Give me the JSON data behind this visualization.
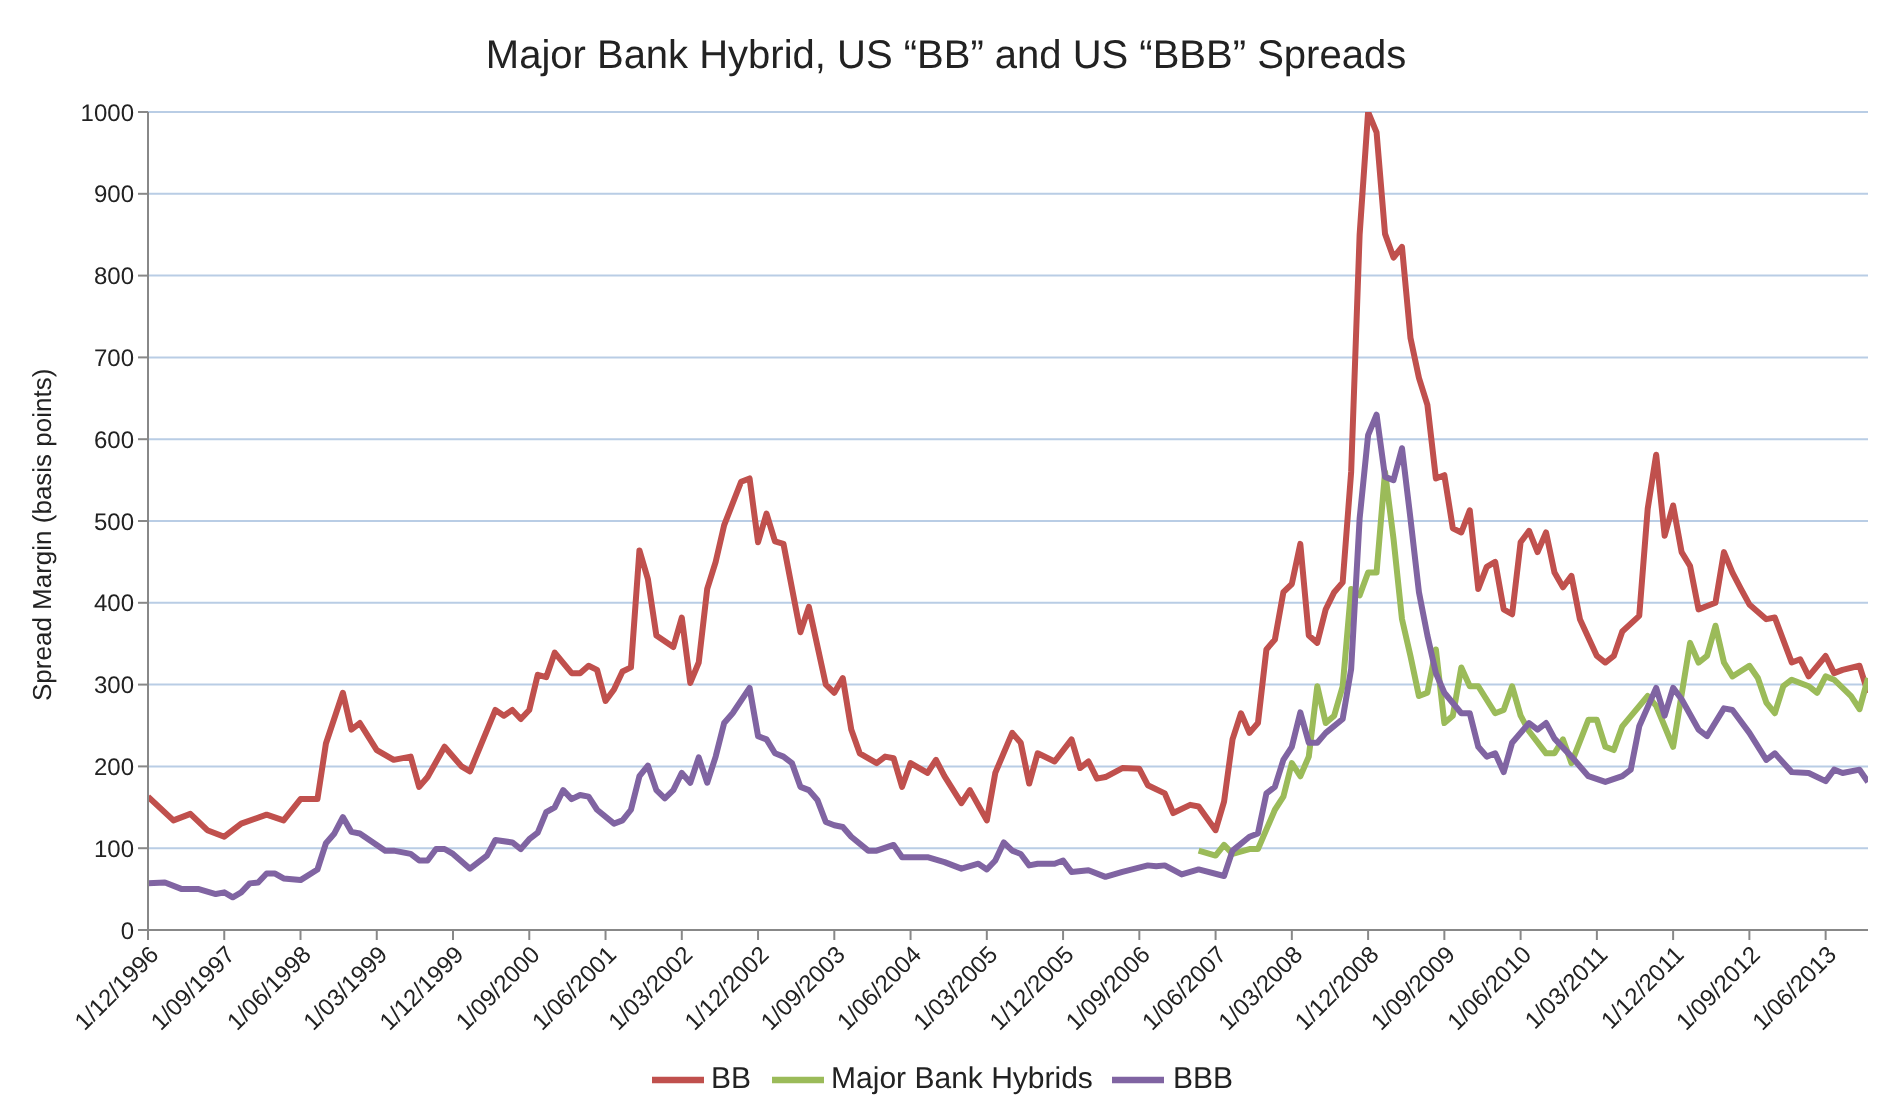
{
  "chart_data": {
    "type": "line",
    "title": "Major Bank Hybrid, US “BB” and US “BBB” Spreads",
    "ylabel": "Spread Margin (basis points)",
    "xlim": [
      "1996-12",
      "2013-11"
    ],
    "xticks": [
      {
        "value": "1996-12",
        "label": "1/12/1996"
      },
      {
        "value": "1997-09",
        "label": "1/09/1997"
      },
      {
        "value": "1998-06",
        "label": "1/06/1998"
      },
      {
        "value": "1999-03",
        "label": "1/03/1999"
      },
      {
        "value": "1999-12",
        "label": "1/12/1999"
      },
      {
        "value": "2000-09",
        "label": "1/09/2000"
      },
      {
        "value": "2001-06",
        "label": "1/06/2001"
      },
      {
        "value": "2002-03",
        "label": "1/03/2002"
      },
      {
        "value": "2002-12",
        "label": "1/12/2002"
      },
      {
        "value": "2003-09",
        "label": "1/09/2003"
      },
      {
        "value": "2004-06",
        "label": "1/06/2004"
      },
      {
        "value": "2005-03",
        "label": "1/03/2005"
      },
      {
        "value": "2005-12",
        "label": "1/12/2005"
      },
      {
        "value": "2006-09",
        "label": "1/09/2006"
      },
      {
        "value": "2007-06",
        "label": "1/06/2007"
      },
      {
        "value": "2008-03",
        "label": "1/03/2008"
      },
      {
        "value": "2008-12",
        "label": "1/12/2008"
      },
      {
        "value": "2009-09",
        "label": "1/09/2009"
      },
      {
        "value": "2010-06",
        "label": "1/06/2010"
      },
      {
        "value": "2011-03",
        "label": "1/03/2011"
      },
      {
        "value": "2011-12",
        "label": "1/12/2011"
      },
      {
        "value": "2012-09",
        "label": "1/09/2012"
      },
      {
        "value": "2013-06",
        "label": "1/06/2013"
      }
    ],
    "ylim": [
      0,
      1000
    ],
    "yticks": [
      0,
      100,
      200,
      300,
      400,
      500,
      600,
      700,
      800,
      900,
      1000
    ],
    "grid": "y",
    "legend": "bottom",
    "marker": "none",
    "line_style": "solid",
    "series": [
      {
        "name": "BB",
        "color": "#c0504d",
        "x": [
          "1996-12",
          "1997-03",
          "1997-05",
          "1997-07",
          "1997-09",
          "1997-11",
          "1998-02",
          "1998-04",
          "1998-06",
          "1998-08",
          "1998-09",
          "1998-11",
          "1998-12",
          "1999-01",
          "1999-03",
          "1999-05",
          "1999-07",
          "1999-08",
          "1999-09",
          "1999-11",
          "2000-01",
          "2000-02",
          "2000-05",
          "2000-06",
          "2000-07",
          "2000-08",
          "2000-09",
          "2000-10",
          "2000-11",
          "2000-12",
          "2001-02",
          "2001-03",
          "2001-04",
          "2001-05",
          "2001-06",
          "2001-07",
          "2001-08",
          "2001-09",
          "2001-10",
          "2001-11",
          "2001-12",
          "2002-02",
          "2002-03",
          "2002-04",
          "2002-05",
          "2002-06",
          "2002-07",
          "2002-08",
          "2002-10",
          "2002-11",
          "2002-12",
          "2003-01",
          "2003-02",
          "2003-03",
          "2003-05",
          "2003-06",
          "2003-08",
          "2003-09",
          "2003-10",
          "2003-11",
          "2003-12",
          "2004-02",
          "2004-03",
          "2004-04",
          "2004-05",
          "2004-06",
          "2004-08",
          "2004-09",
          "2004-10",
          "2004-12",
          "2005-01",
          "2005-03",
          "2005-04",
          "2005-06",
          "2005-07",
          "2005-08",
          "2005-09",
          "2005-11",
          "2006-01",
          "2006-02",
          "2006-03",
          "2006-04",
          "2006-05",
          "2006-07",
          "2006-09",
          "2006-10",
          "2006-12",
          "2007-01",
          "2007-03",
          "2007-04",
          "2007-06",
          "2007-07",
          "2007-08",
          "2007-09",
          "2007-10",
          "2007-11",
          "2007-12",
          "2008-01",
          "2008-02",
          "2008-03",
          "2008-04",
          "2008-05",
          "2008-06",
          "2008-07",
          "2008-08",
          "2008-09",
          "2008-10",
          "2008-11",
          "2008-12",
          "2009-01",
          "2009-02",
          "2009-03",
          "2009-04",
          "2009-05",
          "2009-06",
          "2009-07",
          "2009-08",
          "2009-09",
          "2009-10",
          "2009-11",
          "2009-12",
          "2010-01",
          "2010-02",
          "2010-03",
          "2010-04",
          "2010-05",
          "2010-06",
          "2010-07",
          "2010-08",
          "2010-09",
          "2010-10",
          "2010-11",
          "2010-12",
          "2011-01",
          "2011-03",
          "2011-04",
          "2011-05",
          "2011-06",
          "2011-08",
          "2011-09",
          "2011-10",
          "2011-11",
          "2011-12",
          "2012-01",
          "2012-02",
          "2012-03",
          "2012-04",
          "2012-05",
          "2012-06",
          "2012-07",
          "2012-08",
          "2012-09",
          "2012-11",
          "2012-12",
          "2013-02",
          "2013-03",
          "2013-04",
          "2013-06",
          "2013-07",
          "2013-08",
          "2013-10",
          "2013-11"
        ],
        "values": [
          163,
          134,
          142,
          122,
          114,
          130,
          141,
          134,
          160,
          160,
          228,
          290,
          245,
          253,
          220,
          208,
          212,
          175,
          187,
          224,
          200,
          194,
          269,
          262,
          269,
          258,
          269,
          312,
          309,
          339,
          314,
          314,
          323,
          318,
          280,
          294,
          316,
          321,
          464,
          429,
          360,
          346,
          382,
          302,
          327,
          417,
          450,
          495,
          548,
          552,
          474,
          509,
          475,
          472,
          364,
          395,
          300,
          290,
          308,
          245,
          216,
          204,
          212,
          210,
          175,
          204,
          192,
          208,
          188,
          155,
          171,
          134,
          192,
          241,
          229,
          179,
          216,
          206,
          233,
          198,
          206,
          185,
          187,
          198,
          197,
          177,
          167,
          143,
          153,
          151,
          122,
          157,
          233,
          265,
          241,
          253,
          343,
          355,
          413,
          423,
          472,
          360,
          351,
          392,
          413,
          425,
          560,
          850,
          1000,
          975,
          851,
          822,
          835,
          724,
          675,
          642,
          552,
          556,
          491,
          486,
          513,
          417,
          444,
          450,
          392,
          386,
          474,
          488,
          462,
          486,
          437,
          419,
          433,
          380,
          335,
          327,
          335,
          365,
          384,
          515,
          581,
          482,
          519,
          462,
          445,
          392,
          396,
          400,
          462,
          437,
          417,
          398,
          380,
          382,
          327,
          331,
          310,
          335,
          314,
          318,
          323,
          290
        ]
      },
      {
        "name": "Major Bank Hybrids",
        "color": "#9bbb59",
        "x": [
          "2007-04",
          "2007-06",
          "2007-07",
          "2007-08",
          "2007-10",
          "2007-11",
          "2008-01",
          "2008-02",
          "2008-03",
          "2008-04",
          "2008-05",
          "2008-06",
          "2008-07",
          "2008-08",
          "2008-09",
          "2008-10",
          "2008-11",
          "2008-12",
          "2009-01",
          "2009-02",
          "2009-03",
          "2009-04",
          "2009-05",
          "2009-06",
          "2009-07",
          "2009-08",
          "2009-09",
          "2009-10",
          "2009-11",
          "2009-12",
          "2010-01",
          "2010-03",
          "2010-04",
          "2010-05",
          "2010-06",
          "2010-07",
          "2010-09",
          "2010-10",
          "2010-11",
          "2010-12",
          "2011-02",
          "2011-03",
          "2011-04",
          "2011-05",
          "2011-06",
          "2011-09",
          "2011-10",
          "2011-12",
          "2012-02",
          "2012-03",
          "2012-04",
          "2012-05",
          "2012-06",
          "2012-07",
          "2012-09",
          "2012-10",
          "2012-11",
          "2012-12",
          "2013-01",
          "2013-02",
          "2013-04",
          "2013-05",
          "2013-06",
          "2013-07",
          "2013-09",
          "2013-10",
          "2013-11"
        ],
        "values": [
          97,
          91,
          104,
          93,
          99,
          99,
          147,
          163,
          204,
          188,
          212,
          298,
          253,
          262,
          298,
          417,
          409,
          437,
          437,
          560,
          478,
          380,
          335,
          286,
          290,
          343,
          253,
          262,
          321,
          298,
          298,
          265,
          269,
          298,
          262,
          243,
          216,
          216,
          233,
          204,
          257,
          257,
          224,
          220,
          249,
          286,
          274,
          224,
          351,
          327,
          335,
          372,
          327,
          310,
          323,
          308,
          278,
          265,
          298,
          306,
          298,
          290,
          310,
          306,
          286,
          270,
          308
        ]
      },
      {
        "name": "BBB",
        "color": "#8064a2",
        "x": [
          "1996-12",
          "1997-02",
          "1997-04",
          "1997-06",
          "1997-08",
          "1997-09",
          "1997-10",
          "1997-11",
          "1997-12",
          "1998-01",
          "1998-02",
          "1998-03",
          "1998-04",
          "1998-06",
          "1998-08",
          "1998-09",
          "1998-10",
          "1998-11",
          "1998-12",
          "1999-01",
          "1999-04",
          "1999-05",
          "1999-07",
          "1999-08",
          "1999-09",
          "1999-10",
          "1999-11",
          "1999-12",
          "2000-02",
          "2000-04",
          "2000-05",
          "2000-07",
          "2000-08",
          "2000-09",
          "2000-10",
          "2000-11",
          "2000-12",
          "2001-01",
          "2001-02",
          "2001-03",
          "2001-04",
          "2001-05",
          "2001-07",
          "2001-08",
          "2001-09",
          "2001-10",
          "2001-11",
          "2001-12",
          "2002-01",
          "2002-02",
          "2002-03",
          "2002-04",
          "2002-05",
          "2002-06",
          "2002-07",
          "2002-08",
          "2002-09",
          "2002-11",
          "2002-12",
          "2003-01",
          "2003-02",
          "2003-03",
          "2003-04",
          "2003-05",
          "2003-06",
          "2003-07",
          "2003-08",
          "2003-09",
          "2003-10",
          "2003-11",
          "2004-01",
          "2004-02",
          "2004-04",
          "2004-05",
          "2004-07",
          "2004-08",
          "2004-10",
          "2004-12",
          "2005-02",
          "2005-03",
          "2005-04",
          "2005-05",
          "2005-06",
          "2005-07",
          "2005-08",
          "2005-09",
          "2005-11",
          "2005-12",
          "2006-01",
          "2006-03",
          "2006-05",
          "2006-07",
          "2006-10",
          "2006-11",
          "2006-12",
          "2007-02",
          "2007-04",
          "2007-07",
          "2007-08",
          "2007-10",
          "2007-11",
          "2007-12",
          "2008-01",
          "2008-02",
          "2008-03",
          "2008-04",
          "2008-05",
          "2008-06",
          "2008-07",
          "2008-09",
          "2008-10",
          "2008-11",
          "2008-12",
          "2009-01",
          "2009-02",
          "2009-03",
          "2009-04",
          "2009-05",
          "2009-06",
          "2009-07",
          "2009-08",
          "2009-09",
          "2009-11",
          "2009-12",
          "2010-01",
          "2010-02",
          "2010-03",
          "2010-04",
          "2010-05",
          "2010-07",
          "2010-08",
          "2010-09",
          "2010-10",
          "2010-12",
          "2011-02",
          "2011-04",
          "2011-06",
          "2011-07",
          "2011-08",
          "2011-10",
          "2011-11",
          "2011-12",
          "2012-01",
          "2012-03",
          "2012-04",
          "2012-06",
          "2012-07",
          "2012-09",
          "2012-11",
          "2012-12",
          "2013-02",
          "2013-04",
          "2013-06",
          "2013-07",
          "2013-08",
          "2013-10",
          "2013-11"
        ],
        "values": [
          57,
          58,
          50,
          50,
          44,
          46,
          40,
          46,
          57,
          58,
          69,
          69,
          63,
          61,
          74,
          106,
          118,
          138,
          120,
          118,
          97,
          97,
          93,
          85,
          85,
          99,
          99,
          93,
          75,
          91,
          110,
          107,
          99,
          111,
          119,
          144,
          150,
          171,
          160,
          165,
          163,
          147,
          130,
          134,
          147,
          188,
          201,
          171,
          161,
          171,
          192,
          180,
          211,
          180,
          212,
          253,
          265,
          296,
          237,
          233,
          216,
          212,
          204,
          175,
          171,
          159,
          132,
          128,
          126,
          114,
          97,
          97,
          104,
          89,
          89,
          89,
          83,
          75,
          81,
          74,
          85,
          107,
          97,
          93,
          79,
          81,
          81,
          85,
          71,
          73,
          65,
          71,
          79,
          78,
          79,
          68,
          74,
          66,
          97,
          114,
          118,
          167,
          175,
          208,
          224,
          266,
          229,
          229,
          241,
          258,
          319,
          503,
          605,
          630,
          554,
          550,
          589,
          503,
          413,
          360,
          314,
          290,
          265,
          265,
          224,
          212,
          216,
          193,
          229,
          253,
          245,
          253,
          234,
          212,
          188,
          181,
          188,
          196,
          249,
          296,
          262,
          296,
          282,
          245,
          237,
          271,
          269,
          241,
          208,
          216,
          193,
          192,
          182,
          196,
          192,
          196,
          181
        ]
      }
    ]
  }
}
